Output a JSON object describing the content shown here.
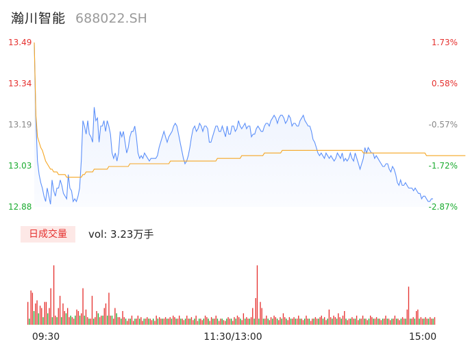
{
  "stock": {
    "name": "瀚川智能",
    "code": "688022.SH"
  },
  "volume_panel": {
    "tab_label": "日成交量",
    "vol_label": "vol: 3.23万手"
  },
  "colors": {
    "price_line": "#5b8ff9",
    "avg_line": "#f5a623",
    "up": "#e5302e",
    "down": "#1aab2f",
    "neutral": "#888888"
  },
  "chart_data": [
    {
      "type": "line",
      "y_ticks_left": [
        "13.49",
        "13.34",
        "13.19",
        "13.03",
        "12.88"
      ],
      "y_ticks_right": [
        "1.73%",
        "0.58%",
        "-0.57%",
        "-1.72%",
        "-2.87%"
      ],
      "x_ticks": [
        "09:30",
        "11:30/13:00",
        "15:00"
      ],
      "ylim": [
        12.88,
        13.49
      ],
      "series": [
        {
          "values": [
            13.49,
            13.2,
            13.05,
            13.0,
            12.97,
            12.95,
            12.92,
            12.9,
            12.95,
            12.92,
            12.89,
            12.98,
            12.94,
            12.92,
            12.95,
            12.95,
            12.98,
            12.96,
            12.93,
            12.92,
            12.91,
            13.0,
            12.95,
            12.94,
            12.9,
            12.91,
            12.9,
            12.92,
            12.95,
            13.05,
            13.2,
            13.18,
            13.15,
            13.2,
            13.15,
            13.14,
            13.12,
            13.25,
            13.2,
            13.21,
            13.12,
            13.18,
            13.18,
            13.2,
            13.16,
            13.2,
            13.18,
            13.15,
            13.08,
            13.06,
            13.08,
            13.05,
            13.08,
            13.16,
            13.14,
            13.16,
            13.12,
            13.08,
            13.1,
            13.14,
            13.16,
            13.16,
            13.18,
            13.14,
            13.08,
            13.06,
            13.07,
            13.06,
            13.08,
            13.07,
            13.06,
            13.05,
            13.06,
            13.06,
            13.06,
            13.06,
            13.07,
            13.1,
            13.12,
            13.14,
            13.16,
            13.14,
            13.12,
            13.14,
            13.15,
            13.16,
            13.18,
            13.19,
            13.18,
            13.15,
            13.12,
            13.09,
            13.06,
            13.04,
            13.05,
            13.07,
            13.1,
            13.14,
            13.17,
            13.18,
            13.16,
            13.17,
            13.19,
            13.18,
            13.16,
            13.18,
            13.18,
            13.17,
            13.12,
            13.12,
            13.14,
            13.16,
            13.18,
            13.18,
            13.16,
            13.16,
            13.18,
            13.16,
            13.14,
            13.18,
            13.15,
            13.15,
            13.18,
            13.18,
            13.16,
            13.17,
            13.2,
            13.18,
            13.17,
            13.18,
            13.19,
            13.17,
            13.18,
            13.18,
            13.14,
            13.15,
            13.15,
            13.17,
            13.18,
            13.17,
            13.16,
            13.16,
            13.18,
            13.19,
            13.19,
            13.18,
            13.2,
            13.21,
            13.22,
            13.21,
            13.19,
            13.21,
            13.22,
            13.22,
            13.21,
            13.19,
            13.2,
            13.22,
            13.21,
            13.18,
            13.19,
            13.19,
            13.18,
            13.18,
            13.2,
            13.21,
            13.22,
            13.2,
            13.19,
            13.18,
            13.18,
            13.16,
            13.13,
            13.12,
            13.1,
            13.08,
            13.07,
            13.08,
            13.07,
            13.06,
            13.08,
            13.07,
            13.06,
            13.07,
            13.06,
            13.05,
            13.06,
            13.08,
            13.07,
            13.06,
            13.08,
            13.05,
            13.06,
            13.05,
            13.06,
            13.08,
            13.06,
            13.05,
            13.08,
            13.06,
            13.04,
            13.02,
            13.04,
            13.06,
            13.1,
            13.08,
            13.1,
            13.09,
            13.08,
            13.08,
            13.06,
            13.07,
            13.06,
            13.05,
            13.04,
            13.03,
            13.03,
            13.04,
            13.04,
            13.02,
            13.01,
            13.03,
            13.02,
            13.0,
            12.97,
            12.96,
            12.98,
            12.96,
            12.96,
            12.97,
            12.96,
            12.95,
            12.95,
            12.95,
            12.94,
            12.95,
            12.94,
            12.93,
            12.93,
            12.91,
            12.92,
            12.92,
            12.91,
            12.9,
            12.9,
            12.91,
            12.91
          ]
        },
        {
          "values": [
            13.49,
            13.22,
            13.14,
            13.12,
            13.1,
            13.09,
            13.07,
            13.05,
            13.04,
            13.03,
            13.02,
            13.02,
            13.01,
            13.01,
            13.01,
            13.0,
            13.0,
            13.0,
            13.0,
            13.0,
            12.99,
            12.99,
            12.99,
            12.99,
            12.99,
            12.99,
            12.99,
            12.99,
            12.99,
            12.99,
            13.0,
            13.0,
            13.01,
            13.01,
            13.01,
            13.01,
            13.01,
            13.02,
            13.02,
            13.02,
            13.02,
            13.02,
            13.02,
            13.02,
            13.02,
            13.02,
            13.03,
            13.03,
            13.03,
            13.03,
            13.03,
            13.03,
            13.03,
            13.03,
            13.03,
            13.03,
            13.03,
            13.03,
            13.03,
            13.04,
            13.04,
            13.04,
            13.04,
            13.04,
            13.04,
            13.04,
            13.04,
            13.04,
            13.04,
            13.04,
            13.04,
            13.04,
            13.04,
            13.04,
            13.04,
            13.04,
            13.04,
            13.04,
            13.04,
            13.04,
            13.04,
            13.04,
            13.04,
            13.04,
            13.05,
            13.05,
            13.05,
            13.05,
            13.05,
            13.05,
            13.05,
            13.05,
            13.05,
            13.05,
            13.05,
            13.05,
            13.05,
            13.05,
            13.05,
            13.05,
            13.05,
            13.05,
            13.05,
            13.05,
            13.05,
            13.05,
            13.05,
            13.05,
            13.05,
            13.05,
            13.05,
            13.05,
            13.05,
            13.06,
            13.06,
            13.06,
            13.06,
            13.06,
            13.06,
            13.06,
            13.06,
            13.06,
            13.06,
            13.06,
            13.06,
            13.06,
            13.06,
            13.06,
            13.07,
            13.07,
            13.07,
            13.07,
            13.07,
            13.07,
            13.07,
            13.07,
            13.07,
            13.07,
            13.07,
            13.07,
            13.07,
            13.07,
            13.08,
            13.08,
            13.08,
            13.08,
            13.08,
            13.08,
            13.08,
            13.08,
            13.08,
            13.08,
            13.08,
            13.09,
            13.09,
            13.09,
            13.09,
            13.09,
            13.09,
            13.09,
            13.09,
            13.09,
            13.09,
            13.09,
            13.09,
            13.09,
            13.09,
            13.09,
            13.09,
            13.09,
            13.09,
            13.09,
            13.09,
            13.09,
            13.09,
            13.09,
            13.09,
            13.09,
            13.09,
            13.09,
            13.09,
            13.09,
            13.09,
            13.09,
            13.09,
            13.09,
            13.09,
            13.09,
            13.09,
            13.09,
            13.09,
            13.09,
            13.09,
            13.09,
            13.09,
            13.09,
            13.09,
            13.09,
            13.09,
            13.09,
            13.09,
            13.09,
            13.09,
            13.08,
            13.08,
            13.08,
            13.08,
            13.08,
            13.08,
            13.08,
            13.08,
            13.08,
            13.08,
            13.08,
            13.08,
            13.08,
            13.08,
            13.08,
            13.08,
            13.08,
            13.08,
            13.08,
            13.08,
            13.08,
            13.08,
            13.08,
            13.08,
            13.08,
            13.08,
            13.08,
            13.08,
            13.08,
            13.08,
            13.08,
            13.08,
            13.08,
            13.08,
            13.08,
            13.08,
            13.08,
            13.08,
            13.08,
            13.07,
            13.07,
            13.07,
            13.07,
            13.07,
            13.07,
            13.07,
            13.07,
            13.07,
            13.07,
            13.07,
            13.07,
            13.07,
            13.07,
            13.07,
            13.07,
            13.07,
            13.07,
            13.07,
            13.07,
            13.07,
            13.07,
            13.07,
            13.07,
            13.07
          ]
        }
      ]
    },
    {
      "type": "bar",
      "series": [
        {
          "values": [
            30,
            90,
            45,
            42,
            35,
            28,
            32,
            45,
            25,
            22,
            78,
            30,
            30,
            15,
            22,
            48,
            12,
            78,
            12,
            35,
            22,
            38,
            10,
            28,
            18,
            15,
            22,
            10,
            35,
            10,
            8,
            12,
            20,
            18,
            10,
            15,
            48,
            12,
            20,
            10,
            5,
            8,
            38,
            12,
            10,
            18,
            32,
            10,
            12,
            10,
            22,
            28,
            15,
            42,
            12,
            10,
            8,
            22,
            12,
            10,
            10,
            8,
            18,
            10,
            12,
            5,
            8,
            10,
            12,
            5,
            10,
            8,
            12,
            8,
            10,
            5,
            12,
            8,
            10,
            5,
            8,
            6,
            10,
            5,
            12,
            8,
            10,
            8,
            6,
            8,
            10,
            5,
            8,
            10,
            6,
            12,
            10,
            5,
            8,
            12,
            10,
            8,
            6,
            10,
            12,
            8,
            5,
            10,
            6,
            8,
            12,
            5,
            10,
            8,
            6,
            8,
            12,
            10,
            8,
            5,
            10,
            6,
            8,
            12,
            10,
            5,
            8,
            10,
            6,
            5,
            12,
            10,
            8,
            6,
            5,
            10,
            8,
            12,
            10,
            8,
            6,
            15,
            12,
            10,
            8,
            6,
            10,
            22,
            18,
            35,
            78,
            48,
            30,
            22,
            10,
            8,
            12,
            15,
            6,
            10,
            8,
            12,
            10,
            8,
            6,
            10,
            12,
            15,
            10,
            8,
            6,
            10,
            12,
            8,
            10,
            5,
            8,
            12,
            10,
            8,
            6,
            10,
            12,
            8,
            10,
            5,
            8,
            12,
            10,
            8,
            6,
            10,
            12,
            8,
            10,
            6,
            12,
            20,
            10,
            8,
            12,
            10,
            22,
            15,
            10,
            8,
            12,
            18,
            10,
            6,
            8,
            12,
            10,
            8,
            22,
            12,
            6,
            10,
            8,
            12,
            10,
            8,
            6,
            8,
            12,
            10,
            6,
            8,
            10,
            12,
            8,
            6,
            10,
            8,
            12,
            10,
            8,
            6,
            10,
            8,
            12,
            10,
            8,
            6,
            12,
            10,
            8,
            45,
            20,
            50,
            12,
            8,
            10,
            15,
            18,
            20,
            12,
            10,
            8,
            6,
            10,
            8,
            12,
            10,
            8,
            6,
            10
          ]
        },
        {
          "values": [
            22,
            8,
            12,
            10,
            18,
            30,
            10,
            15,
            8,
            12,
            10,
            20,
            12,
            15,
            18,
            12,
            10,
            15,
            8,
            10,
            15,
            12,
            10,
            8,
            12,
            15,
            10,
            8,
            12,
            10,
            15,
            12,
            10,
            8,
            12,
            10,
            8,
            12,
            15,
            10,
            8,
            12,
            10,
            8,
            10,
            12,
            15,
            10,
            8,
            12,
            10,
            8,
            12,
            10,
            8,
            12,
            10,
            8,
            15,
            12,
            10,
            8,
            12,
            10,
            8,
            12,
            10,
            8,
            12,
            10,
            8,
            12,
            10,
            8,
            12,
            10,
            8,
            12,
            10,
            8,
            12,
            10,
            8,
            12,
            10,
            8,
            12,
            10,
            8,
            12,
            10,
            8,
            12,
            10,
            8,
            12,
            10,
            8,
            12,
            10,
            8,
            12,
            10,
            8,
            12,
            10,
            8,
            12,
            10,
            8,
            12,
            10,
            8,
            12,
            10,
            8,
            12,
            10,
            8,
            12,
            10,
            8,
            12,
            10,
            8,
            12,
            10,
            8,
            12,
            10,
            8,
            12,
            10,
            8,
            12,
            10,
            8,
            12,
            10,
            8,
            12,
            10,
            8,
            12,
            10,
            8,
            12,
            10,
            8,
            12,
            10,
            8,
            12,
            10,
            8,
            12,
            10,
            8,
            12,
            10,
            8,
            12,
            10,
            8,
            12,
            10,
            8,
            12,
            10,
            8,
            12,
            10,
            8,
            12,
            10,
            8,
            12,
            10,
            8,
            12,
            10,
            8,
            12,
            10,
            8,
            12,
            10,
            8,
            12,
            10,
            8,
            12,
            10,
            8,
            12,
            10,
            8,
            12,
            10,
            8,
            12,
            10,
            8,
            12,
            10,
            8,
            12,
            10,
            8,
            12,
            10,
            8,
            12,
            10,
            8,
            12,
            10,
            8,
            12,
            10,
            8,
            12,
            10,
            8,
            12,
            10,
            8,
            12,
            10,
            8,
            12,
            10,
            8,
            12,
            10,
            8,
            12,
            10,
            8,
            12,
            10,
            8,
            12,
            10,
            8,
            12,
            10,
            8,
            12,
            10,
            8,
            12,
            10,
            8,
            12,
            10,
            8,
            12,
            10,
            8,
            12,
            10,
            8,
            12,
            10,
            8,
            12,
            10,
            8,
            12,
            10,
            8
          ]
        }
      ]
    }
  ]
}
